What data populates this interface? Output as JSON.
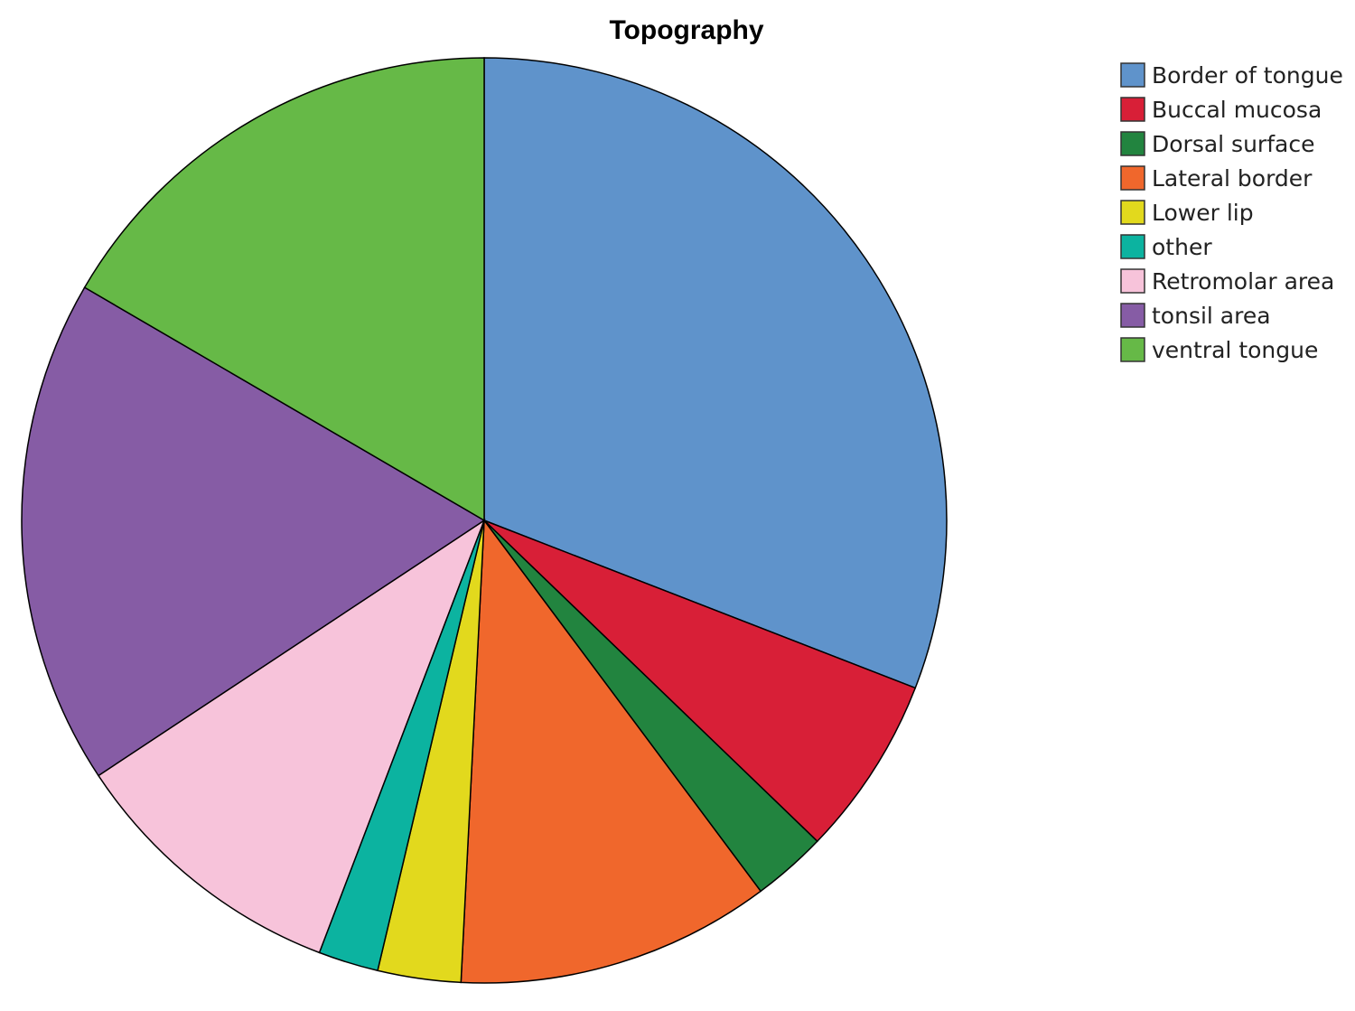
{
  "chart_data": {
    "type": "pie",
    "title": "Topography",
    "categories": [
      "Border of tongue",
      "Buccal mucosa",
      "Dorsal surface",
      "Lateral border",
      "Lower lip",
      "other",
      "Retromolar area",
      "tonsil area",
      "ventral tongue"
    ],
    "values": [
      30.9,
      6.3,
      2.6,
      11.0,
      2.9,
      2.1,
      9.9,
      17.7,
      16.6
    ],
    "colors": [
      "#5f93cb",
      "#d81f37",
      "#22843f",
      "#f0672c",
      "#e2d91d",
      "#0cb3a0",
      "#f7c3da",
      "#865ca5",
      "#66b947"
    ],
    "legend": "top-right"
  }
}
